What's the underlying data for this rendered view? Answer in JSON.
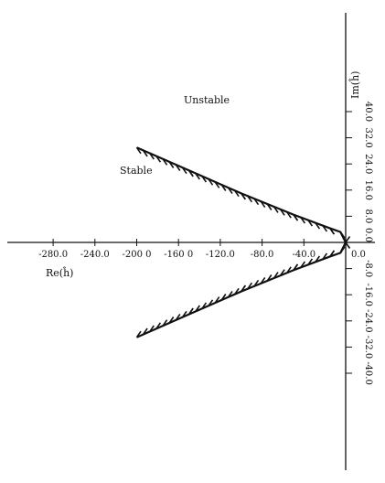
{
  "chart_data": {
    "type": "diagram",
    "xlabel": "Re(ĥ)",
    "ylabel": "Im(ĥ)",
    "x_ticks": [
      "-280.0",
      "-240.0",
      "-200 0",
      "-160 0",
      "-120.0",
      "-80.0",
      "-40.0",
      "0.0"
    ],
    "x_tick_values": [
      -280,
      -240,
      -200,
      -160,
      -120,
      -80,
      -40,
      0
    ],
    "y_ticks_pos": [
      "0.0",
      "8.0",
      "16.0",
      "24.0",
      "32.0",
      "40.0"
    ],
    "y_ticks_pos_values": [
      0,
      8,
      16,
      24,
      32,
      40
    ],
    "y_ticks_neg": [
      "-8.0",
      "-16.0",
      "-24.0",
      "-32.0",
      "-40.0"
    ],
    "y_ticks_neg_values": [
      -8,
      -16,
      -24,
      -32,
      -40
    ],
    "xlim": [
      -280,
      0
    ],
    "ylim": [
      -40,
      40
    ],
    "regions": {
      "stable": "Stable",
      "unstable": "Unstable"
    },
    "boundary_upper": [
      {
        "x": 0,
        "y": 0
      },
      {
        "x": -5,
        "y": 3.2
      },
      {
        "x": -15,
        "y": 4.3
      },
      {
        "x": -50,
        "y": 8.5
      },
      {
        "x": -100,
        "y": 15
      },
      {
        "x": -150,
        "y": 22
      },
      {
        "x": -200,
        "y": 29
      }
    ],
    "boundary_lower": [
      {
        "x": 0,
        "y": 0
      },
      {
        "x": -5,
        "y": -3.2
      },
      {
        "x": -15,
        "y": -4.3
      },
      {
        "x": -50,
        "y": -8.5
      },
      {
        "x": -100,
        "y": -15
      },
      {
        "x": -150,
        "y": -22
      },
      {
        "x": -200,
        "y": -29
      }
    ]
  }
}
